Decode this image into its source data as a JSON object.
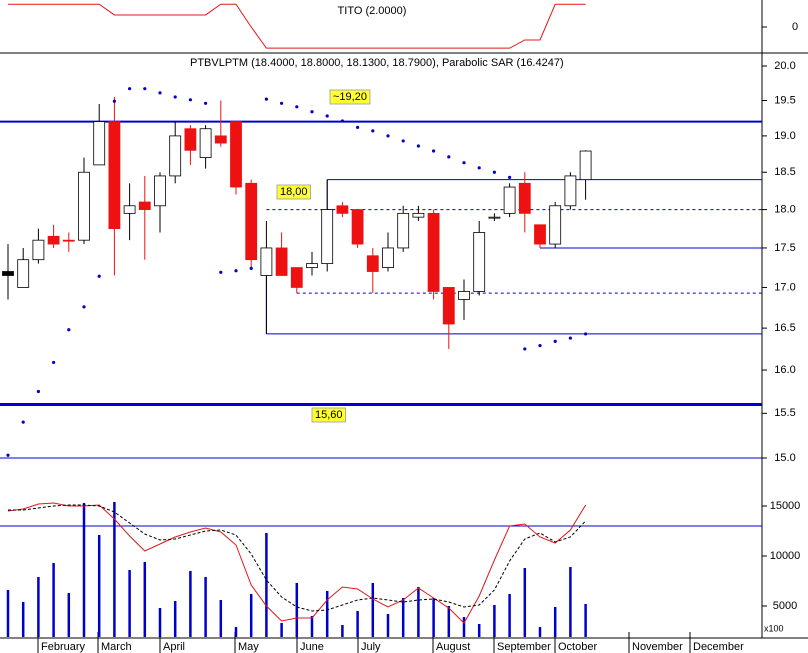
{
  "chart_data": [
    {
      "type": "line",
      "title": "TITO (2.0000)",
      "color": "#e01818",
      "values": [
        1,
        1,
        1,
        1,
        1,
        1,
        1,
        0.53,
        0.53,
        0.53,
        0.53,
        0.53,
        0.53,
        0.53,
        1,
        1,
        0,
        -0.93,
        -0.93,
        -0.93,
        -0.93,
        -0.93,
        -0.93,
        -0.93,
        -0.93,
        -0.93,
        -0.93,
        -0.93,
        -0.93,
        -0.93,
        -0.93,
        -0.93,
        -0.93,
        -0.93,
        -0.57,
        -0.57,
        1,
        1,
        1
      ],
      "ylim": [
        -1.1,
        1.1
      ],
      "yticks": [
        0
      ]
    },
    {
      "type": "candlestick",
      "title": "PTBVLPTM (18.4000, 18.8000, 18.1300, 18.7900), Parabolic SAR (16.4247)",
      "categories": [
        "February",
        "March",
        "April",
        "May",
        "June",
        "July",
        "August",
        "September",
        "October",
        "November",
        "December"
      ],
      "open": [
        17.2,
        17.0,
        17.35,
        17.65,
        17.6,
        17.6,
        18.6,
        19.2,
        17.95,
        18.1,
        18.05,
        18.45,
        19.1,
        18.7,
        19.0,
        19.2,
        18.35,
        17.15,
        17.5,
        17.25,
        17.25,
        17.3,
        18.05,
        18.0,
        17.4,
        17.25,
        17.5,
        17.9,
        17.95,
        17.0,
        16.85,
        16.95,
        17.9,
        17.95,
        18.35,
        17.8,
        17.55,
        18.05,
        18.4
      ],
      "high": [
        17.55,
        17.5,
        17.75,
        17.8,
        17.7,
        18.7,
        19.45,
        19.55,
        18.35,
        18.45,
        18.5,
        19.2,
        19.15,
        19.15,
        19.5,
        19.2,
        18.4,
        17.85,
        17.7,
        17.25,
        17.45,
        18.4,
        18.1,
        18.0,
        17.5,
        17.7,
        18.05,
        18.05,
        18.0,
        17.0,
        17.1,
        17.85,
        17.95,
        18.35,
        18.5,
        17.8,
        18.1,
        18.5,
        18.8
      ],
      "low": [
        16.85,
        17.0,
        17.3,
        17.5,
        17.45,
        17.55,
        18.6,
        17.15,
        17.6,
        17.35,
        17.7,
        18.35,
        18.6,
        18.55,
        18.85,
        18.2,
        17.25,
        16.43,
        17.15,
        16.93,
        17.15,
        17.2,
        17.9,
        17.5,
        16.93,
        17.2,
        17.45,
        17.85,
        16.85,
        16.25,
        16.6,
        16.9,
        17.85,
        17.9,
        17.7,
        17.5,
        17.5,
        18.0,
        18.13
      ],
      "close": [
        17.15,
        17.35,
        17.6,
        17.55,
        17.6,
        18.5,
        19.2,
        17.75,
        18.05,
        18.0,
        18.45,
        19.0,
        18.8,
        19.1,
        18.9,
        18.3,
        17.35,
        17.5,
        17.15,
        17.0,
        17.3,
        18.0,
        17.95,
        17.55,
        17.2,
        17.5,
        17.95,
        17.95,
        16.95,
        16.55,
        16.95,
        17.7,
        17.9,
        18.3,
        17.95,
        17.55,
        18.05,
        18.45,
        18.79
      ],
      "colors": [
        "#000000",
        "#ffffff",
        "#ffffff",
        "#ee1111",
        "#ee1111",
        "#ffffff",
        "#ffffff",
        "#ee1111",
        "#ffffff",
        "#ee1111",
        "#ffffff",
        "#ffffff",
        "#ee1111",
        "#ffffff",
        "#ee1111",
        "#ee1111",
        "#ee1111",
        "#ffffff",
        "#ee1111",
        "#ee1111",
        "#ffffff",
        "#ffffff",
        "#ee1111",
        "#ee1111",
        "#ee1111",
        "#ffffff",
        "#ffffff",
        "#ffffff",
        "#ee1111",
        "#ee1111",
        "#ffffff",
        "#ffffff",
        "#ffffff",
        "#ffffff",
        "#ee1111",
        "#ee1111",
        "#ffffff",
        "#ffffff",
        "#ffffff"
      ],
      "sar": [
        15.03,
        15.4,
        15.75,
        16.09,
        16.48,
        16.76,
        17.14,
        19.49,
        19.67,
        19.67,
        19.61,
        19.55,
        19.51,
        19.46,
        17.19,
        17.21,
        17.24,
        19.52,
        19.46,
        19.41,
        19.34,
        19.28,
        19.21,
        19.12,
        19.07,
        19.0,
        18.93,
        18.86,
        18.79,
        18.71,
        18.63,
        18.56,
        18.5,
        18.43,
        16.25,
        16.29,
        16.34,
        16.38,
        16.43
      ],
      "sar_color": "#0000cc",
      "levels": [
        {
          "value": 19.2,
          "label": "~19,20",
          "from": 0,
          "width": 2
        },
        {
          "value": 15.6,
          "label": "15,60",
          "from": 0,
          "width": 3
        },
        {
          "value": 15.0,
          "from": 0,
          "width": 1
        },
        {
          "value": 18.4,
          "from": 21,
          "from_value": 18.0,
          "width": 1
        },
        {
          "value": 18.0,
          "label": "18,00",
          "from": 17,
          "width": 1,
          "dashed": true
        },
        {
          "value": 17.5,
          "from": 35,
          "width": 1
        },
        {
          "value": 16.93,
          "from": 19,
          "width": 1,
          "dashed": true
        },
        {
          "value": 16.43,
          "from": 17,
          "from_value": 17.15,
          "width": 1
        }
      ],
      "level_color": "#0000cc",
      "log_scale": true,
      "ylim": [
        15,
        20
      ],
      "yticks": [
        {
          "value": 20,
          "label": "20.0"
        },
        19.5,
        {
          "value": 19,
          "label": "19.0"
        },
        18.5,
        {
          "value": 18,
          "label": "18.0"
        },
        17.5,
        {
          "value": 17,
          "label": "17.0"
        },
        16.5,
        {
          "value": 16,
          "label": "16.0"
        },
        15.5,
        {
          "value": 15,
          "label": "15.0"
        }
      ]
    },
    {
      "type": "bar",
      "color": "#0000cc",
      "unit_label": "x100",
      "values": [
        6600,
        5400,
        7900,
        9300,
        6300,
        15300,
        12100,
        15400,
        8600,
        9400,
        4800,
        5500,
        8500,
        7900,
        5600,
        2900,
        6200,
        12300,
        3300,
        7300,
        4000,
        6500,
        3100,
        4500,
        7300,
        4200,
        5800,
        6900,
        5800,
        5000,
        3900,
        3200,
        5100,
        6200,
        8800,
        2900,
        4900,
        8900,
        5200
      ],
      "series": [
        {
          "color": "#e01818",
          "values": [
            14500,
            14700,
            15200,
            15300,
            15000,
            15000,
            15100,
            13700,
            12000,
            10500,
            11200,
            11900,
            12400,
            12800,
            12400,
            11100,
            7100,
            5000,
            3500,
            3800,
            3800,
            5600,
            6900,
            6700,
            5700,
            4900,
            5600,
            6800,
            5800,
            4800,
            3300,
            6000,
            9600,
            13000,
            13200,
            11900,
            11300,
            12600,
            15100
          ]
        },
        {
          "color": "#000000",
          "dashed": true,
          "values": [
            14600,
            14600,
            14800,
            15000,
            15100,
            15100,
            15000,
            14400,
            13300,
            12200,
            11600,
            11700,
            12100,
            12500,
            12600,
            12100,
            10200,
            7600,
            5900,
            4900,
            4500,
            4600,
            5100,
            5600,
            5800,
            5600,
            5400,
            5600,
            5700,
            5400,
            4900,
            5100,
            6600,
            9500,
            11700,
            12300,
            11400,
            11900,
            13500
          ]
        }
      ],
      "level": 13000,
      "ylim": [
        1900,
        17500
      ],
      "yticks": [
        5000,
        10000,
        15000
      ]
    }
  ]
}
